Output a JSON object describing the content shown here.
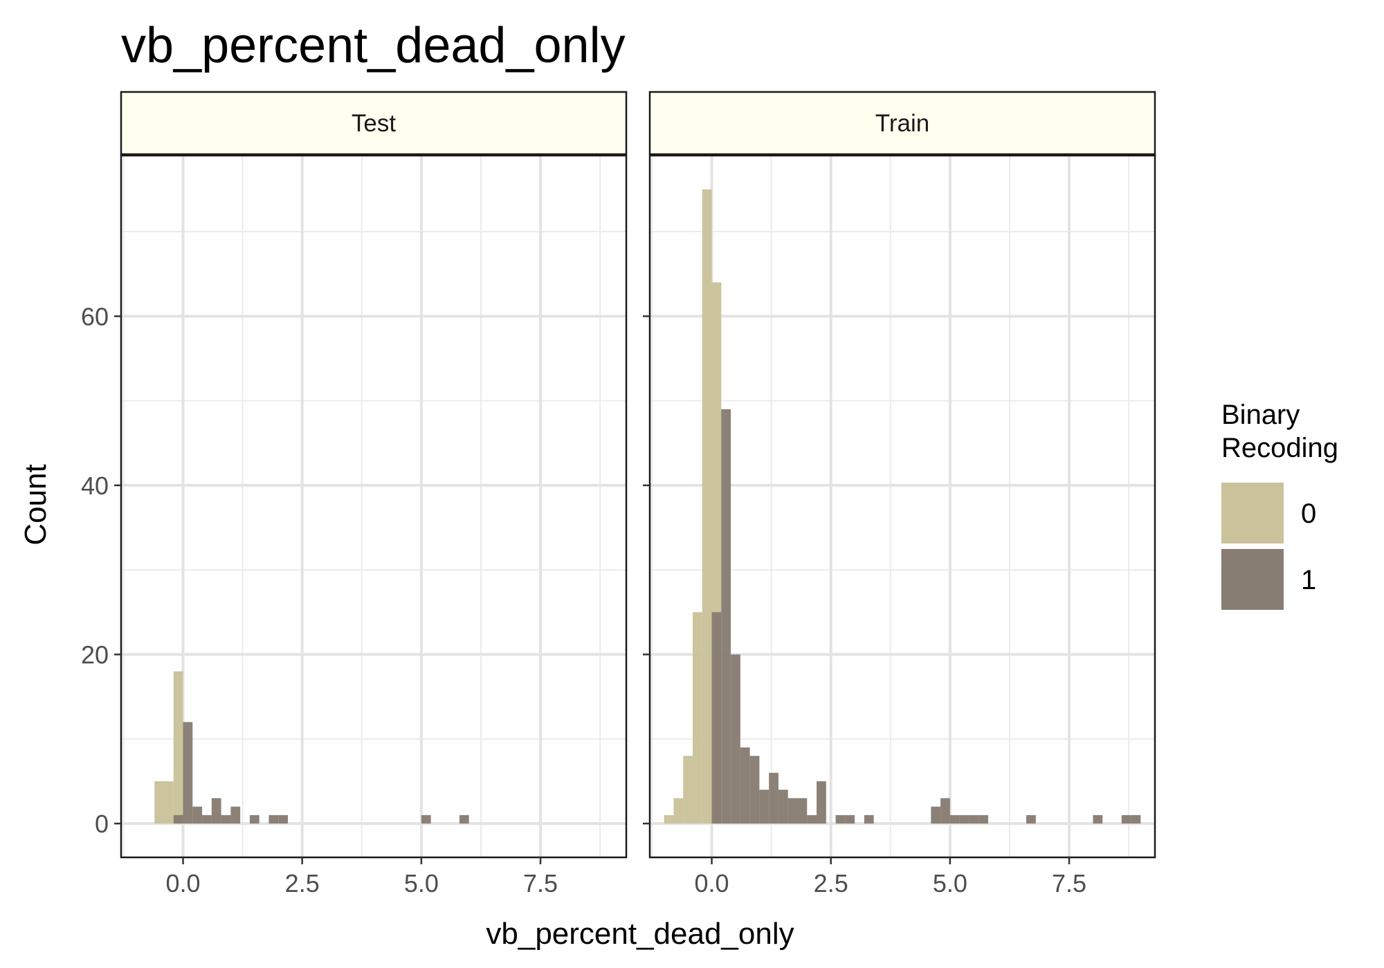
{
  "chart_data": {
    "type": "histogram",
    "title": "vb_percent_dead_only",
    "xlabel": "vb_percent_dead_only",
    "ylabel": "Count",
    "xlim": [
      -1.3,
      9.3
    ],
    "ylim": [
      -4,
      79
    ],
    "x_ticks": [
      0,
      2.5,
      5,
      7.5
    ],
    "x_tick_labels": [
      "0.0",
      "2.5",
      "5.0",
      "7.5"
    ],
    "y_ticks": [
      0,
      20,
      40,
      60
    ],
    "y_tick_labels": [
      "0",
      "20",
      "40",
      "60"
    ],
    "grid": true,
    "legend": {
      "title_lines": [
        "Binary",
        "Recoding"
      ],
      "placement": "right",
      "entries": [
        {
          "label": "0",
          "color": "#c9c29a"
        },
        {
          "label": "1",
          "color": "#877d72"
        }
      ]
    },
    "bin_width": 0.2,
    "facets": [
      {
        "label": "Test",
        "series": [
          {
            "group": "0",
            "bins": [
              [
                -0.6,
                5
              ],
              [
                -0.4,
                5
              ],
              [
                -0.2,
                18
              ]
            ]
          },
          {
            "group": "1",
            "bins": [
              [
                -0.2,
                1
              ],
              [
                0.0,
                12
              ],
              [
                0.2,
                2
              ],
              [
                0.4,
                1
              ],
              [
                0.6,
                3
              ],
              [
                0.8,
                1
              ],
              [
                1.0,
                2
              ],
              [
                1.4,
                1
              ],
              [
                1.8,
                1
              ],
              [
                2.0,
                1
              ],
              [
                5.0,
                1
              ],
              [
                5.8,
                1
              ]
            ]
          }
        ]
      },
      {
        "label": "Train",
        "series": [
          {
            "group": "0",
            "bins": [
              [
                -1.0,
                1
              ],
              [
                -0.8,
                3
              ],
              [
                -0.6,
                8
              ],
              [
                -0.4,
                25
              ],
              [
                -0.2,
                75
              ],
              [
                0.0,
                64
              ]
            ]
          },
          {
            "group": "1",
            "bins": [
              [
                0.0,
                25
              ],
              [
                0.2,
                49
              ],
              [
                0.4,
                20
              ],
              [
                0.6,
                9
              ],
              [
                0.8,
                8
              ],
              [
                1.0,
                4
              ],
              [
                1.2,
                6
              ],
              [
                1.4,
                4
              ],
              [
                1.6,
                3
              ],
              [
                1.8,
                3
              ],
              [
                2.0,
                1
              ],
              [
                2.2,
                5
              ],
              [
                2.6,
                1
              ],
              [
                2.8,
                1
              ],
              [
                3.2,
                1
              ],
              [
                4.6,
                2
              ],
              [
                4.8,
                3
              ],
              [
                5.0,
                1
              ],
              [
                5.2,
                1
              ],
              [
                5.4,
                1
              ],
              [
                5.6,
                1
              ],
              [
                6.6,
                1
              ],
              [
                8.0,
                1
              ],
              [
                8.6,
                1
              ],
              [
                8.8,
                1
              ]
            ]
          }
        ]
      }
    ]
  }
}
